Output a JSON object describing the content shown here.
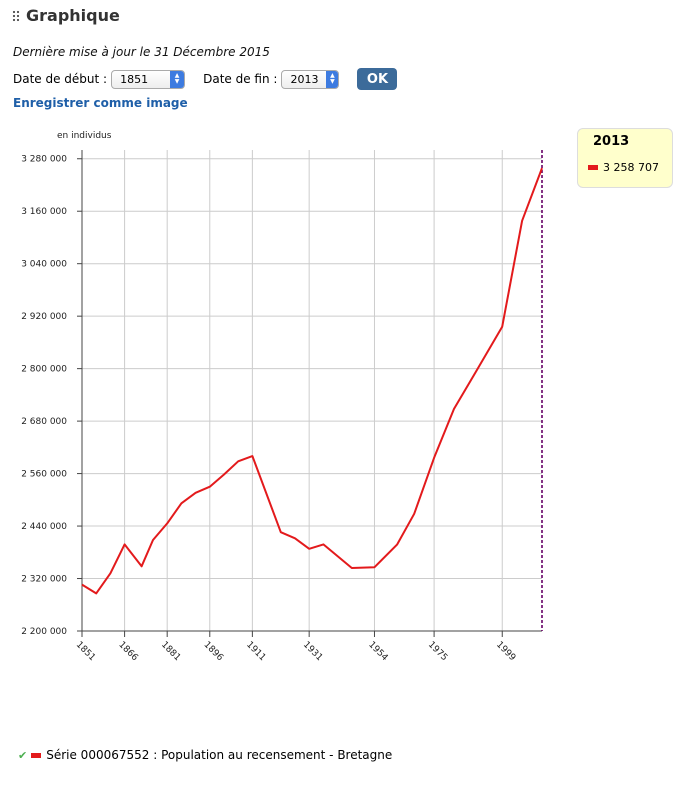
{
  "header": {
    "title": "Graphique"
  },
  "updated": "Dernière mise à jour le 31 Décembre 2015",
  "controls": {
    "start_label": "Date de début :",
    "start_value": "1851",
    "end_label": "Date de fin :",
    "end_value": "2013",
    "ok_label": "OK"
  },
  "save_link": "Enregistrer comme image",
  "tooltip": {
    "year": "2013",
    "value": "3 258 707"
  },
  "legend": {
    "label": "Série 000067552 : Population au recensement - Bretagne"
  },
  "colors": {
    "line": "#e31a1c",
    "marker": "#660066",
    "grid": "#cccccc"
  },
  "chart_data": {
    "type": "line",
    "ylabel": "en individus",
    "ylim": [
      2200000,
      3300000
    ],
    "yticks": [
      2200000,
      2320000,
      2440000,
      2560000,
      2680000,
      2800000,
      2920000,
      3040000,
      3160000,
      3280000
    ],
    "ytick_labels": [
      "2 200 000",
      "2 320 000",
      "2 440 000",
      "2 560 000",
      "2 680 000",
      "2 800 000",
      "2 920 000",
      "3 040 000",
      "3 160 000",
      "3 280 000"
    ],
    "xlim": [
      1851,
      2013
    ],
    "xticks": [
      1851,
      1866,
      1881,
      1896,
      1911,
      1931,
      1954,
      1975,
      1999
    ],
    "grid": true,
    "highlight_x": 2013,
    "series": [
      {
        "name": "Série 000067552 : Population au recensement - Bretagne",
        "x": [
          1851,
          1856,
          1861,
          1866,
          1872,
          1876,
          1881,
          1886,
          1891,
          1896,
          1901,
          1906,
          1911,
          1921,
          1926,
          1931,
          1936,
          1946,
          1954,
          1962,
          1968,
          1975,
          1982,
          1990,
          1999,
          2006,
          2013
        ],
        "y": [
          2306000,
          2286000,
          2332000,
          2398000,
          2348000,
          2408000,
          2446000,
          2492000,
          2516000,
          2530000,
          2558000,
          2588000,
          2600000,
          2426000,
          2412000,
          2388000,
          2398000,
          2344000,
          2346000,
          2398000,
          2468000,
          2596000,
          2708000,
          2796000,
          2896000,
          3138000,
          3258707
        ]
      }
    ]
  }
}
